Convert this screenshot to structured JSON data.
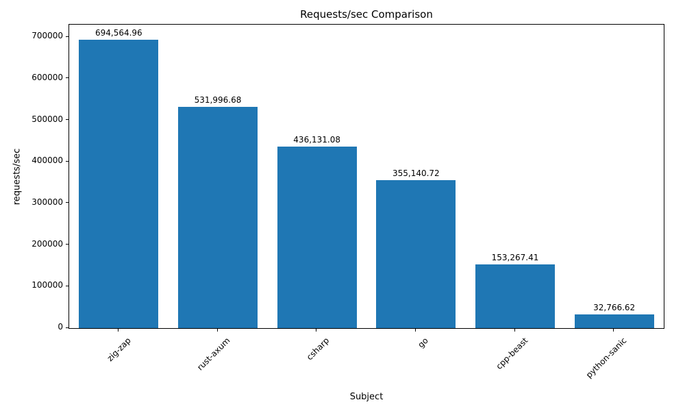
{
  "chart_data": {
    "type": "bar",
    "title": "Requests/sec Comparison",
    "xlabel": "Subject",
    "ylabel": "requests/sec",
    "categories": [
      "zig-zap",
      "rust-axum",
      "csharp",
      "go",
      "cpp-beast",
      "python-sanic"
    ],
    "values": [
      694564.96,
      531996.68,
      436131.08,
      355140.72,
      153267.41,
      32766.62
    ],
    "value_labels": [
      "694,564.96",
      "531,996.68",
      "436,131.08",
      "355,140.72",
      "153,267.41",
      "32,766.62"
    ],
    "bar_color": "#1f77b4",
    "ylim": [
      0,
      730000
    ],
    "yticks": [
      0,
      100000,
      200000,
      300000,
      400000,
      500000,
      600000,
      700000
    ],
    "grid": false,
    "legend": "none"
  }
}
